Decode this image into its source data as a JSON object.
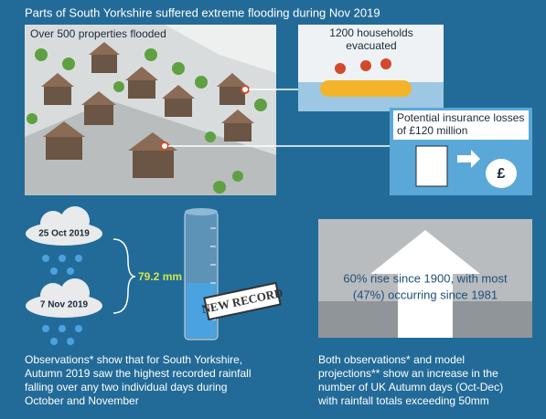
{
  "header": {
    "title": "Parts of South Yorkshire suffered extreme flooding during Nov 2019"
  },
  "flood_panel": {
    "label": "Over 500 properties flooded"
  },
  "evacuation_panel": {
    "label": [
      "1200 households",
      "evacuated"
    ]
  },
  "insurance_panel": {
    "label": [
      "Potential insurance losses",
      "of £120 million"
    ]
  },
  "rainfall": {
    "dates": [
      "25 Oct 2019",
      "7 Nov 2019"
    ],
    "total": "79.2 mm",
    "stamp": "NEW RECORD",
    "caption": [
      "Observations* show that for South Yorkshire,",
      "Autumn 2019 saw the highest recorded rainfall",
      "falling over any two individual days during",
      "October and November"
    ]
  },
  "trend": {
    "headline": [
      "60% rise since 1900, with most",
      "(47%) occurring since 1981"
    ],
    "caption": [
      "Both observations* and model",
      "projections** show an increase in the",
      "number of UK Autumn days (Oct-Dec)",
      "with rainfall totals exceeding 50mm"
    ]
  }
}
